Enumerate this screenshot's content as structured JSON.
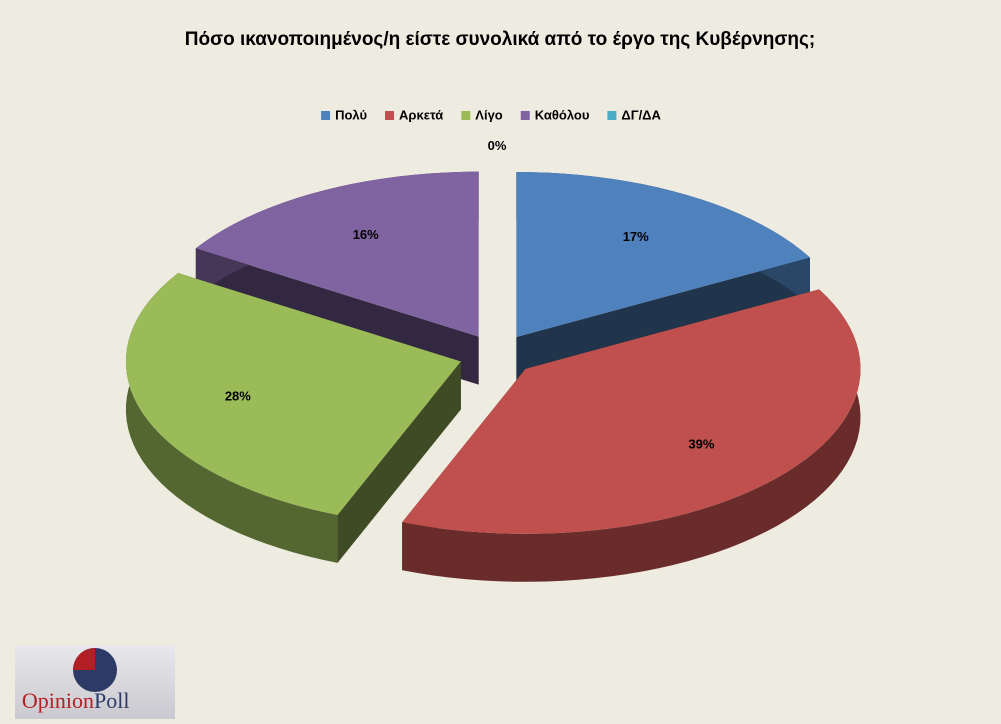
{
  "chart_data": {
    "type": "pie",
    "title": "Πόσο ικανοποιημένος/η είστε συνολικά από  το έργο της Κυβέρνησης;",
    "categories": [
      "Πολύ",
      "Αρκετά",
      "Λίγο",
      "Καθόλου",
      "ΔΓ/ΔΑ"
    ],
    "values": [
      17,
      39,
      28,
      16,
      0
    ],
    "value_labels": [
      "17%",
      "39%",
      "28%",
      "16%",
      "0%"
    ],
    "colors": [
      "#4f81bd",
      "#c0504d",
      "#9bbb59",
      "#8064a2",
      "#4bacc6"
    ],
    "legend": "top"
  },
  "logo": {
    "parts": [
      "Opinion",
      "Poll"
    ]
  }
}
